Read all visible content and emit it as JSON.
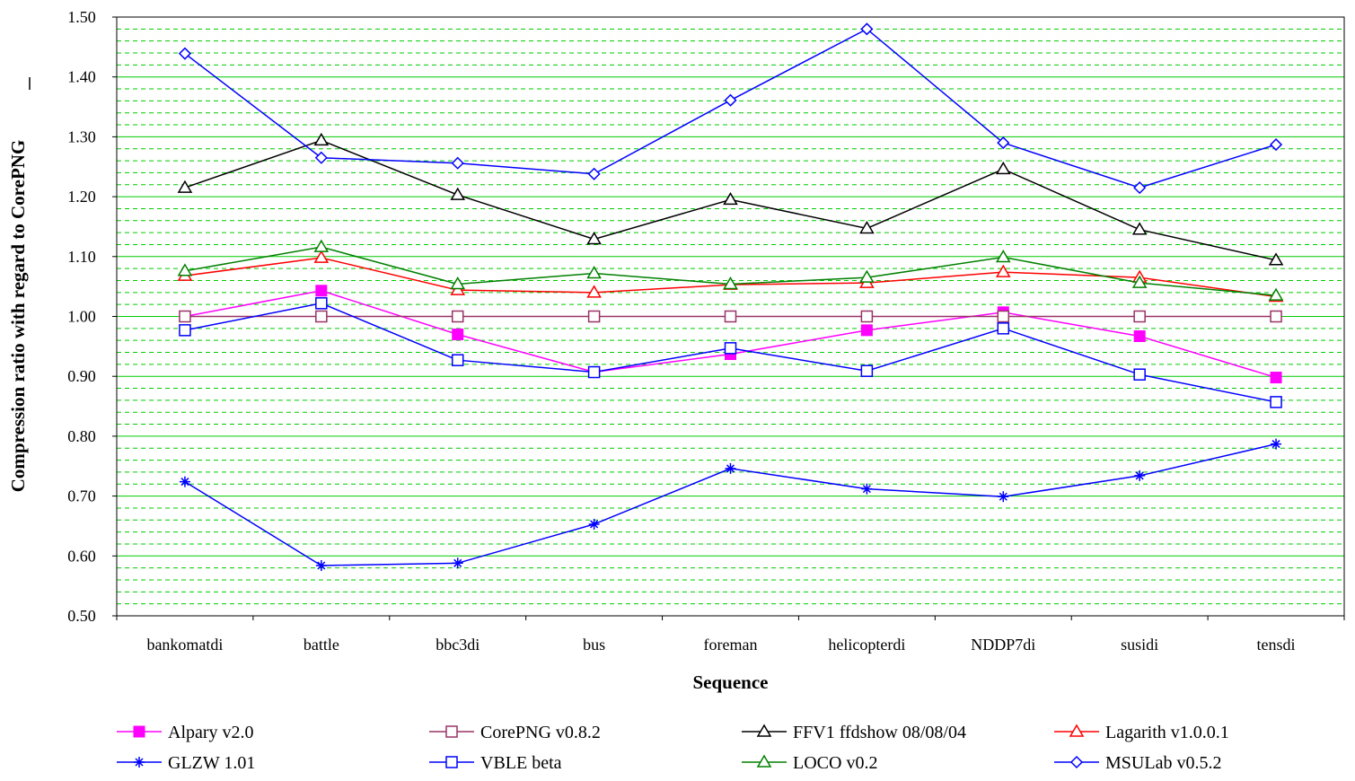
{
  "chart_data": {
    "type": "line",
    "title": "",
    "xlabel": "Sequence",
    "ylabel": "Compression ratio with regard to CorePNG",
    "ylim": [
      0.5,
      1.5
    ],
    "y_major_step": 0.1,
    "y_minor_step": 0.02,
    "grid": true,
    "legend_position": "bottom",
    "categories": [
      "bankomatdi",
      "battle",
      "bbc3di",
      "bus",
      "foreman",
      "helicopterdi",
      "NDDP7di",
      "susidi",
      "tensdi"
    ],
    "series": [
      {
        "name": "Alpary v2.0",
        "color": "#ff00ff",
        "marker": "filled-square",
        "values": [
          1.0,
          1.043,
          0.97,
          0.907,
          0.937,
          0.977,
          1.007,
          0.967,
          0.898
        ]
      },
      {
        "name": "CorePNG v0.8.2",
        "color": "#993366",
        "marker": "open-square",
        "values": [
          1.0,
          1.0,
          1.0,
          1.0,
          1.0,
          1.0,
          1.0,
          1.0,
          1.0
        ]
      },
      {
        "name": "FFV1 ffdshow 08/08/04",
        "color": "#000000",
        "marker": "open-triangle",
        "values": [
          1.215,
          1.294,
          1.203,
          1.129,
          1.195,
          1.147,
          1.246,
          1.145,
          1.094
        ]
      },
      {
        "name": "Lagarith v1.0.0.1",
        "color": "#ff0000",
        "marker": "open-triangle",
        "values": [
          1.068,
          1.098,
          1.044,
          1.04,
          1.053,
          1.056,
          1.074,
          1.065,
          1.033
        ]
      },
      {
        "name": "GLZW 1.01",
        "color": "#0000ff",
        "marker": "star",
        "values": [
          0.724,
          0.584,
          0.588,
          0.653,
          0.746,
          0.712,
          0.699,
          0.734,
          0.787
        ]
      },
      {
        "name": "VBLE beta",
        "color": "#0000ff",
        "marker": "open-square",
        "values": [
          0.977,
          1.022,
          0.927,
          0.907,
          0.947,
          0.909,
          0.98,
          0.903,
          0.857
        ]
      },
      {
        "name": "LOCO v0.2",
        "color": "#008000",
        "marker": "open-triangle",
        "values": [
          1.076,
          1.116,
          1.054,
          1.072,
          1.054,
          1.065,
          1.099,
          1.056,
          1.035
        ]
      },
      {
        "name": "MSULab v0.5.2",
        "color": "#0000ff",
        "marker": "open-diamond",
        "values": [
          1.439,
          1.265,
          1.256,
          1.238,
          1.361,
          1.48,
          1.29,
          1.215,
          1.287
        ]
      }
    ]
  }
}
